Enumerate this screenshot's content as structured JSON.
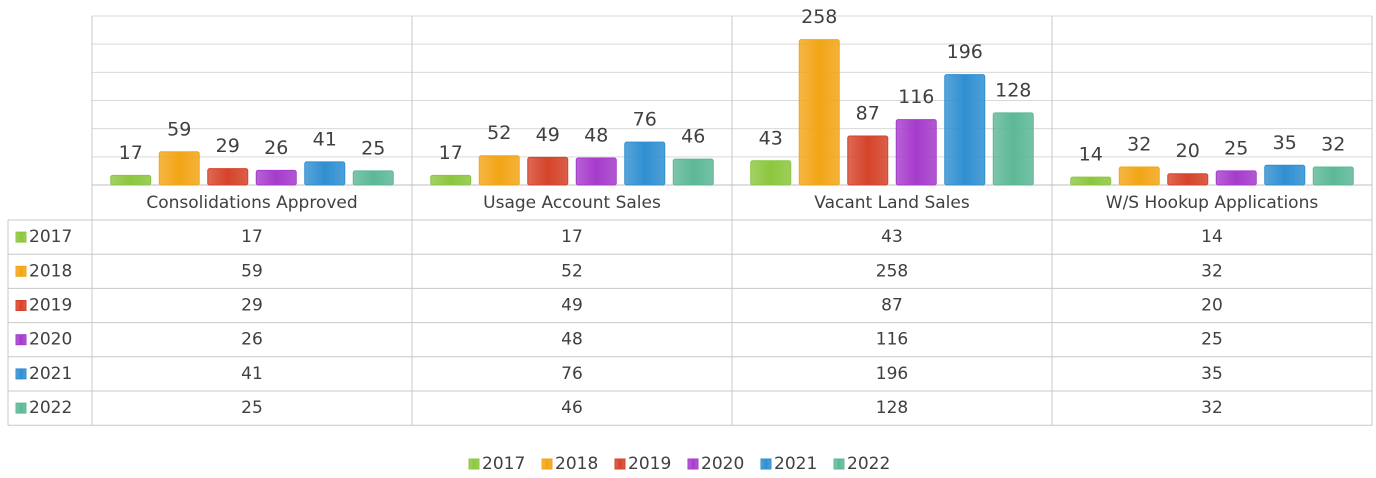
{
  "chart_data": {
    "type": "bar",
    "categories": [
      "Consolidations Approved",
      "Usage Account Sales",
      "Vacant Land Sales",
      "W/S Hookup Applications"
    ],
    "series": [
      {
        "name": "2017",
        "color": "#8cc63e",
        "values": [
          17,
          17,
          43,
          14
        ]
      },
      {
        "name": "2018",
        "color": "#f2a516",
        "values": [
          59,
          52,
          258,
          32
        ]
      },
      {
        "name": "2019",
        "color": "#d6432a",
        "values": [
          29,
          49,
          87,
          20
        ]
      },
      {
        "name": "2020",
        "color": "#a53bcb",
        "values": [
          26,
          48,
          116,
          25
        ]
      },
      {
        "name": "2021",
        "color": "#2f8fd1",
        "values": [
          41,
          76,
          196,
          35
        ]
      },
      {
        "name": "2022",
        "color": "#5cb896",
        "values": [
          25,
          46,
          128,
          32
        ]
      }
    ],
    "ylim": [
      0,
      300
    ],
    "yticks": [
      0,
      50,
      100,
      150,
      200,
      250,
      300
    ],
    "grid": true,
    "data_table": true,
    "legend": "bottom"
  }
}
